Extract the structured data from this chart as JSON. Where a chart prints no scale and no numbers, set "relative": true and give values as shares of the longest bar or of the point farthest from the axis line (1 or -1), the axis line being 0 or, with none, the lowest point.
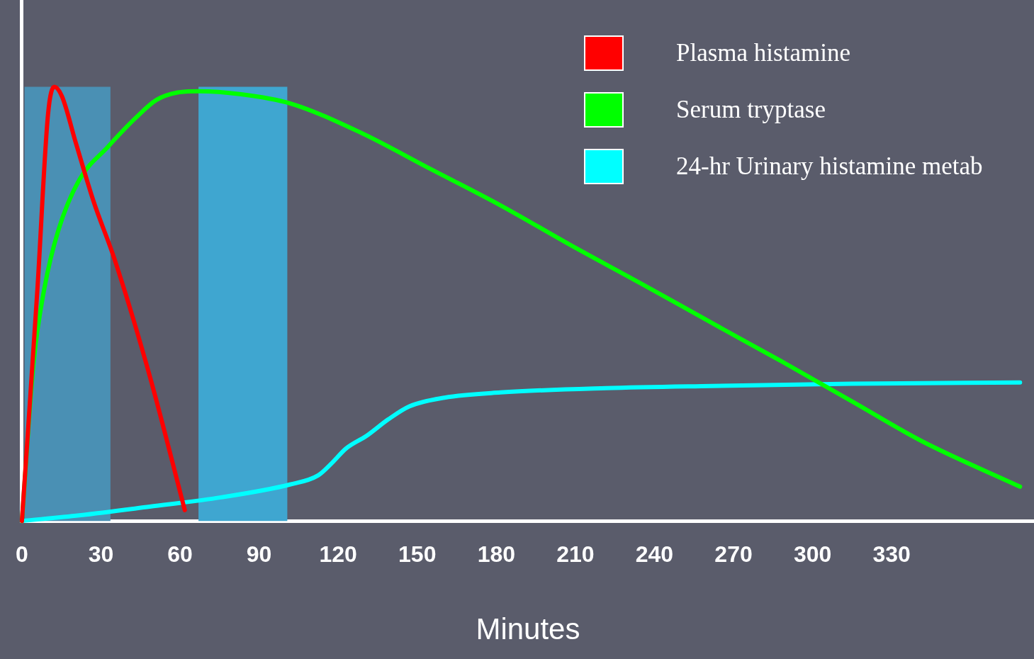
{
  "chart_data": {
    "type": "line",
    "xlabel": "Minutes",
    "relative": true,
    "xlim": [
      0,
      384
    ],
    "xticks": [
      0,
      30,
      60,
      90,
      120,
      150,
      180,
      210,
      240,
      270,
      300,
      330
    ],
    "legend": "top right",
    "grid": false,
    "marker": "none",
    "bands": [
      {
        "axis": "x",
        "from": 1,
        "to": 33.6,
        "color": "#4a90b4"
      },
      {
        "axis": "x",
        "from": 67,
        "to": 100.7,
        "color": "#3fa6d0"
      }
    ],
    "series": [
      {
        "name": "Plasma histamine",
        "color": "#ff0000",
        "x": [
          0,
          5.9,
          9.9,
          12.3,
          15.2,
          20.5,
          27.2,
          35.2,
          48.5,
          61.8
        ],
        "values": [
          0,
          0.535,
          0.936,
          1,
          0.978,
          0.87,
          0.736,
          0.602,
          0.334,
          0.025
        ]
      },
      {
        "name": "Serum tryptase",
        "color": "#00ff00",
        "x": [
          0,
          4.5,
          8.5,
          13.8,
          21.8,
          32.5,
          43.1,
          51.1,
          59.1,
          67.1,
          83.1,
          101.7,
          128.4,
          155,
          181.6,
          208.3,
          234.9,
          261.5,
          288.1,
          314.8,
          341.4,
          378.7
        ],
        "values": [
          0,
          0.368,
          0.535,
          0.669,
          0.786,
          0.861,
          0.928,
          0.97,
          0.987,
          0.99,
          0.983,
          0.962,
          0.895,
          0.811,
          0.727,
          0.635,
          0.547,
          0.457,
          0.368,
          0.276,
          0.184,
          0.079
        ]
      },
      {
        "name": "24-hr Urinary histamine metab",
        "color": "#00ffff",
        "x": [
          0,
          21.8,
          48.5,
          75.1,
          101.7,
          112.4,
          117.7,
          123,
          131,
          139,
          147,
          160.3,
          181.6,
          221.6,
          261.5,
          314.8,
          378.7
        ],
        "values": [
          0,
          0.013,
          0.033,
          0.054,
          0.084,
          0.105,
          0.134,
          0.167,
          0.197,
          0.234,
          0.264,
          0.284,
          0.296,
          0.306,
          0.311,
          0.316,
          0.319
        ]
      }
    ]
  }
}
